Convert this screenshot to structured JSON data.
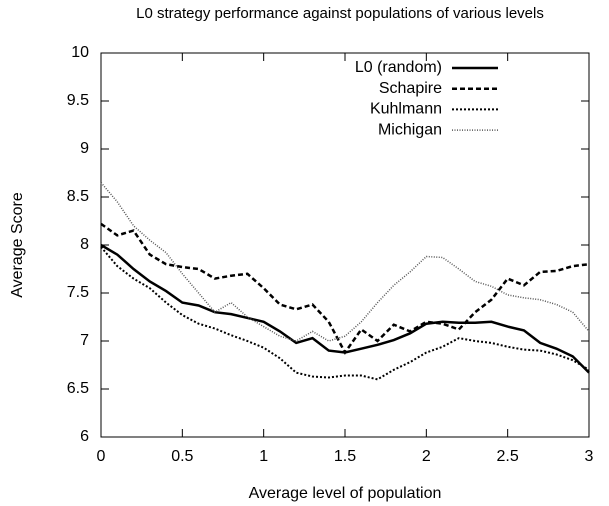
{
  "chart_data": {
    "type": "line",
    "title": "L0 strategy performance against populations of various levels",
    "x_label": "Average level of population",
    "y_label": "Average Score",
    "x": [
      0,
      0.1,
      0.2,
      0.3,
      0.4,
      0.5,
      0.6,
      0.7,
      0.8,
      0.9,
      1,
      1.1,
      1.2,
      1.3,
      1.4,
      1.5,
      1.6,
      1.7,
      1.8,
      1.9,
      2,
      2.1,
      2.2,
      2.3,
      2.4,
      2.5,
      2.6,
      2.7,
      2.8,
      2.9,
      3
    ],
    "series": [
      {
        "name": "L0 (random)",
        "color": "#000000",
        "values": [
          8.0,
          7.9,
          7.75,
          7.62,
          7.52,
          7.4,
          7.37,
          7.3,
          7.28,
          7.24,
          7.2,
          7.1,
          6.98,
          7.03,
          6.9,
          6.88,
          6.92,
          6.96,
          7.01,
          7.08,
          7.18,
          7.2,
          7.19,
          7.19,
          7.2,
          7.15,
          7.11,
          6.98,
          6.92,
          6.84,
          6.67
        ]
      },
      {
        "name": "Schapire",
        "color": "#000000",
        "values": [
          8.22,
          8.1,
          8.15,
          7.9,
          7.8,
          7.77,
          7.75,
          7.65,
          7.68,
          7.7,
          7.55,
          7.38,
          7.33,
          7.38,
          7.2,
          6.88,
          7.12,
          7.0,
          7.17,
          7.1,
          7.2,
          7.18,
          7.12,
          7.3,
          7.43,
          7.65,
          7.58,
          7.72,
          7.73,
          7.78,
          7.8
        ]
      },
      {
        "name": "Kuhlmann",
        "color": "#000000",
        "values": [
          7.98,
          7.78,
          7.65,
          7.55,
          7.4,
          7.27,
          7.18,
          7.13,
          7.06,
          7.0,
          6.93,
          6.82,
          6.67,
          6.63,
          6.62,
          6.64,
          6.64,
          6.6,
          6.7,
          6.78,
          6.88,
          6.94,
          7.03,
          7.0,
          6.98,
          6.94,
          6.91,
          6.9,
          6.86,
          6.8,
          6.7
        ]
      },
      {
        "name": "Michigan",
        "color": "#555555",
        "values": [
          8.65,
          8.45,
          8.2,
          8.05,
          7.92,
          7.7,
          7.5,
          7.3,
          7.4,
          7.25,
          7.15,
          7.05,
          7.0,
          7.1,
          7.0,
          7.05,
          7.2,
          7.4,
          7.58,
          7.72,
          7.88,
          7.87,
          7.75,
          7.62,
          7.57,
          7.48,
          7.45,
          7.43,
          7.38,
          7.3,
          7.1
        ]
      }
    ],
    "xlim": [
      0,
      3
    ],
    "xticks": [
      0,
      0.5,
      1,
      1.5,
      2,
      2.5,
      3
    ],
    "ylim": [
      6,
      10
    ],
    "yticks": [
      6,
      6.5,
      7,
      7.5,
      8,
      8.5,
      9,
      9.5,
      10
    ],
    "grid": false,
    "legend": "upper right"
  }
}
